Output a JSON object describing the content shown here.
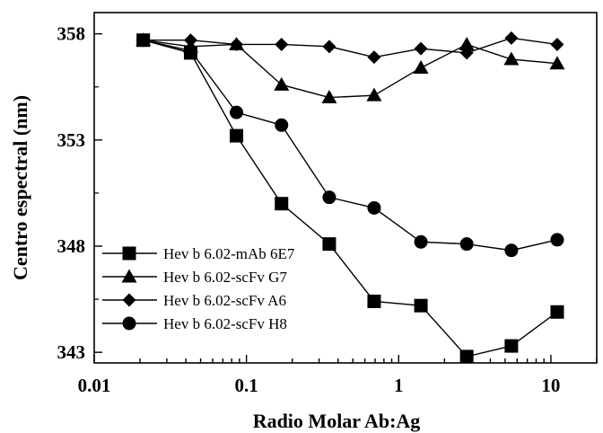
{
  "chart_data": {
    "type": "line",
    "xlabel": "Radio Molar Ab:Ag",
    "ylabel": "Centro espectral (nm)",
    "xscale": "log",
    "xlim": [
      0.01,
      20
    ],
    "ylim": [
      342.5,
      359
    ],
    "xticks": [
      0.01,
      0.1,
      1,
      10
    ],
    "xtick_labels": [
      "0.01",
      "0.1",
      "1",
      "10"
    ],
    "yticks": [
      343,
      348,
      353,
      358
    ],
    "ytick_labels": [
      "343",
      "348",
      "353",
      "358"
    ],
    "grid": false,
    "legend_position": "bottom-left",
    "x": [
      0.021,
      0.043,
      0.086,
      0.17,
      0.35,
      0.69,
      1.4,
      2.8,
      5.5,
      11
    ],
    "series": [
      {
        "name": "Hev b 6.02-mAb 6E7",
        "marker": "square",
        "values": [
          357.7,
          357.1,
          353.2,
          350.0,
          348.1,
          345.4,
          345.2,
          342.8,
          343.3,
          344.9
        ]
      },
      {
        "name": "Hev b 6.02-scFv G7",
        "marker": "triangle",
        "values": [
          357.7,
          357.4,
          357.5,
          355.6,
          355.0,
          355.1,
          356.4,
          357.5,
          356.8,
          356.6
        ]
      },
      {
        "name": "Hev b 6.02-scFv A6",
        "marker": "diamond",
        "values": [
          357.7,
          357.7,
          357.5,
          357.5,
          357.4,
          356.9,
          357.3,
          357.1,
          357.8,
          357.5
        ]
      },
      {
        "name": "Hev b 6.02-scFv H8",
        "marker": "circle",
        "values": [
          357.7,
          357.2,
          354.3,
          353.7,
          350.3,
          349.8,
          348.2,
          348.1,
          347.8,
          348.3
        ]
      }
    ]
  }
}
